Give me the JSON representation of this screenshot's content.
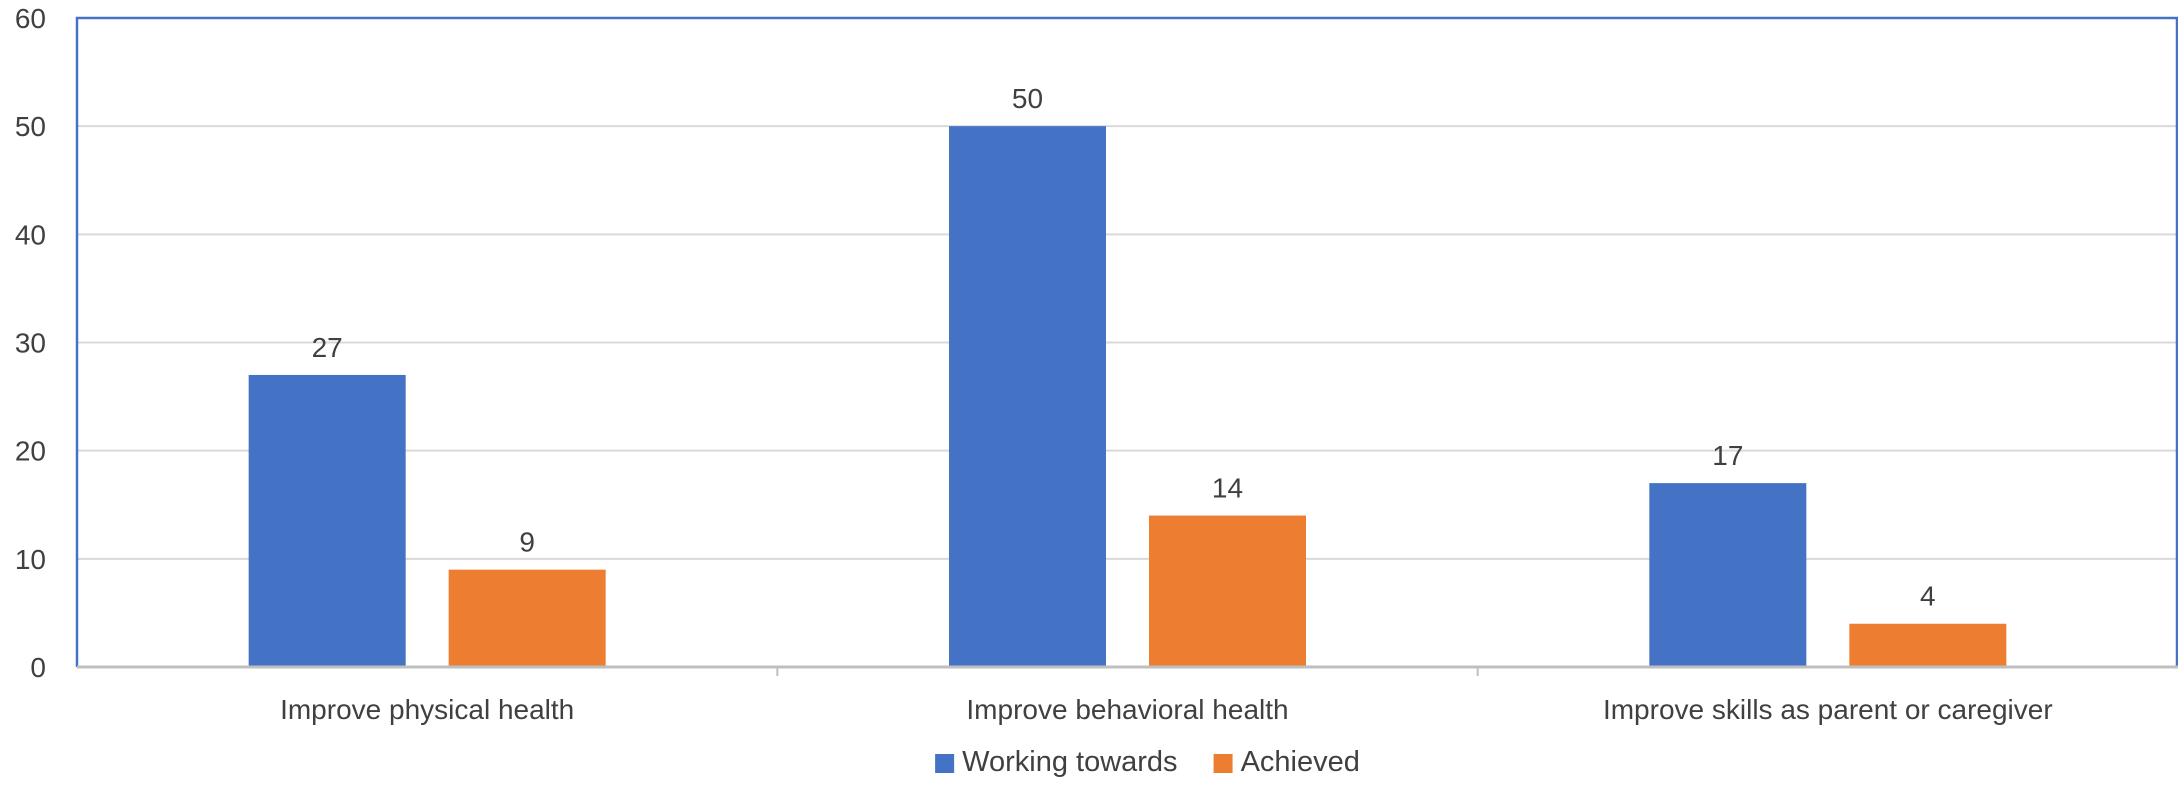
{
  "chart_data": {
    "type": "bar",
    "categories": [
      "Improve physical health",
      "Improve behavioral health",
      "Improve skills as parent or caregiver"
    ],
    "series": [
      {
        "name": "Working towards",
        "values": [
          27,
          50,
          17
        ],
        "color": "#4472C4"
      },
      {
        "name": "Achieved",
        "values": [
          9,
          14,
          4
        ],
        "color": "#ED7D31"
      }
    ],
    "ylim": [
      0,
      60
    ],
    "yticks": [
      "0",
      "10",
      "20",
      "30",
      "40",
      "50",
      "60"
    ],
    "grid": true,
    "legend": "bottom-center",
    "data_labels": true,
    "title": "",
    "xlabel": "",
    "ylabel": ""
  },
  "colors": {
    "gridline": "#D9D9D9",
    "axis": "#BFBFBF",
    "plot_border": "#4472C4",
    "text": "#404040"
  }
}
